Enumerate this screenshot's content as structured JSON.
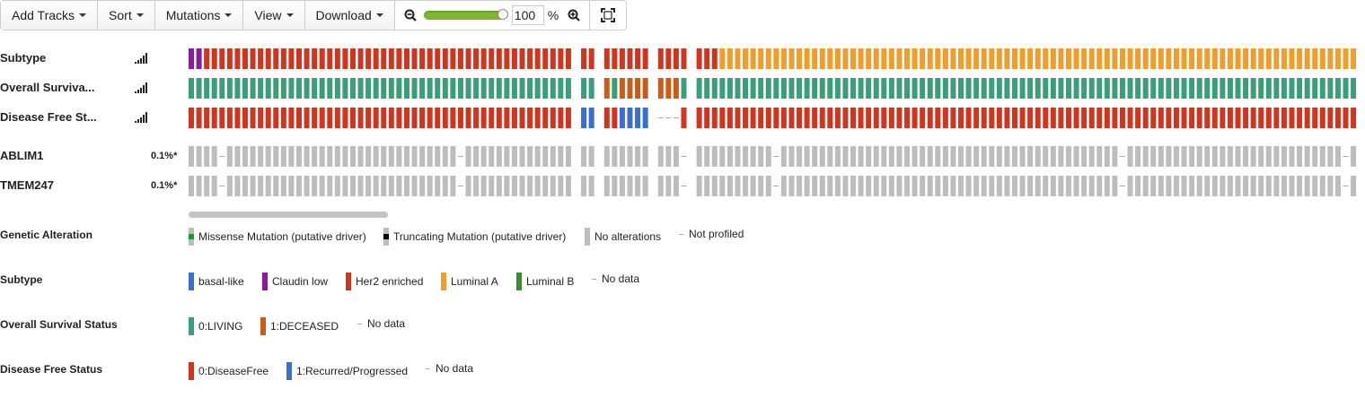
{
  "toolbar": {
    "add_tracks": "Add Tracks",
    "sort": "Sort",
    "mutations": "Mutations",
    "view": "View",
    "download": "Download",
    "zoom_value": "100",
    "zoom_unit": "%"
  },
  "tracks": {
    "subtype": "Subtype",
    "overall_survival": "Overall Surviva...",
    "disease_free": "Disease Free St...",
    "genes": [
      {
        "name": "ABLIM1",
        "pct": "0.1%*"
      },
      {
        "name": "TMEM247",
        "pct": "0.1%*"
      }
    ]
  },
  "colors": {
    "purple": "#8b1a9c",
    "her2": "#d0361f",
    "luminal_a": "#f19d2b",
    "living": "#3a9e79",
    "deceased": "#cc5d18",
    "blue": "#3a6ed0",
    "gray": "#bdbdbd",
    "luminal_b": "#3a8c2f"
  },
  "legend": {
    "genetic_alteration": {
      "title": "Genetic Alteration",
      "items": [
        "Missense Mutation (putative driver)",
        "Truncating Mutation (putative driver)",
        "No alterations",
        "Not profiled"
      ]
    },
    "subtype": {
      "title": "Subtype",
      "items": [
        "basal-like",
        "Claudin low",
        "Her2 enriched",
        "Luminal A",
        "Luminal B",
        "No data"
      ]
    },
    "overall_survival": {
      "title": "Overall Survival Status",
      "items": [
        "0:LIVING",
        "1:DECEASED",
        "No data"
      ]
    },
    "disease_free": {
      "title": "Disease Free Status",
      "items": [
        "0:DiseaseFree",
        "1:Recurred/Progressed",
        "No data"
      ]
    }
  }
}
